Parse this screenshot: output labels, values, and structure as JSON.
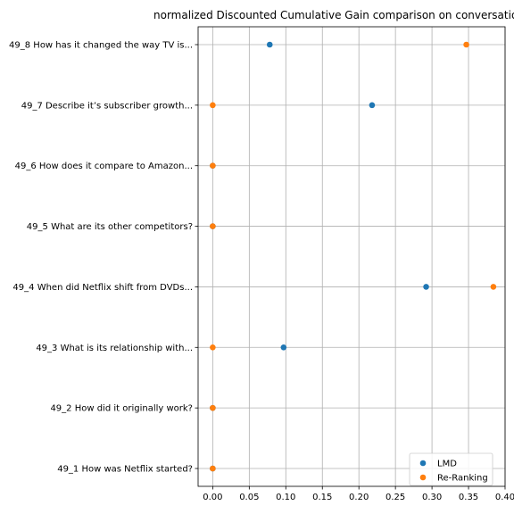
{
  "chart_data": {
    "type": "scatter",
    "title": "normalized Discounted Cumulative Gain comparison on conversatio",
    "xlabel": "",
    "ylabel": "",
    "xlim": [
      -0.02,
      0.4
    ],
    "xticks": [
      "0.00",
      "0.05",
      "0.10",
      "0.15",
      "0.20",
      "0.25",
      "0.30",
      "0.35",
      "0.40"
    ],
    "categories": [
      "49_1 How was Netflix started?",
      "49_2 How did it originally work?",
      "49_3 What is its relationship with...",
      "49_4 When did Netflix shift from DVDs...",
      "49_5 What are its other competitors?",
      "49_6 How does it compare to Amazon...",
      "49_7 Describe it’s subscriber growth...",
      "49_8 How has it changed the way TV is..."
    ],
    "series": [
      {
        "name": "LMD",
        "color": "#1f77b4",
        "values": [
          0.0,
          0.0,
          0.097,
          0.292,
          0.0,
          0.0,
          0.218,
          0.078
        ]
      },
      {
        "name": "Re-Ranking",
        "color": "#ff7f0e",
        "values": [
          0.0,
          0.0,
          0.0,
          0.384,
          0.0,
          0.0,
          0.0,
          0.347
        ]
      }
    ],
    "grid": true,
    "legend_position": "lower-right"
  }
}
